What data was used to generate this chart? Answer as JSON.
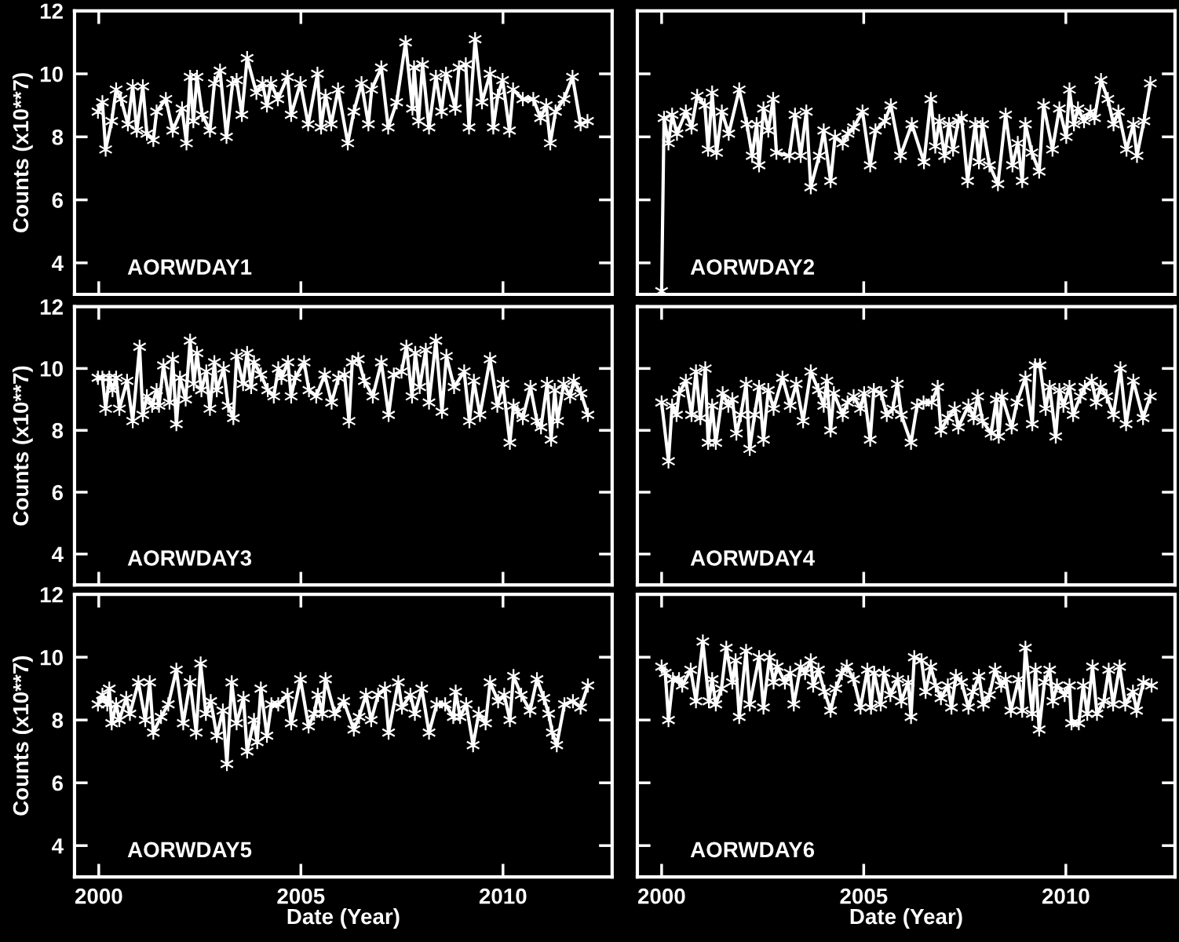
{
  "chart_data": [
    {
      "type": "line",
      "ylabel": "Counts (x10**7)",
      "annotations": [
        "AORWDAY1"
      ],
      "xlim": [
        1999.4,
        2012.7
      ],
      "ylim": [
        3,
        12
      ],
      "tick_labels": "y",
      "marker": "cross",
      "line_style": "solid",
      "xticks": [
        2000,
        2005,
        2010
      ],
      "yticks": [
        4,
        6,
        8,
        10,
        12
      ],
      "series": [
        {
          "color": "#ffffff",
          "x": [
            1999.98,
            2000.09,
            2000.17,
            2000.32,
            2000.43,
            2000.55,
            2000.72,
            2000.84,
            2000.94,
            2001.09,
            2001.19,
            2001.35,
            2001.43,
            2001.66,
            2001.83,
            2002.06,
            2002.17,
            2002.26,
            2002.34,
            2002.43,
            2002.56,
            2002.75,
            2002.86,
            2003.0,
            2003.16,
            2003.31,
            2003.41,
            2003.54,
            2003.67,
            2003.9,
            2004.05,
            2004.16,
            2004.26,
            2004.43,
            2004.67,
            2004.76,
            2004.99,
            2005.18,
            2005.41,
            2005.5,
            2005.61,
            2005.75,
            2005.92,
            2006.16,
            2006.31,
            2006.5,
            2006.67,
            2006.75,
            2006.99,
            2007.16,
            2007.37,
            2007.59,
            2007.76,
            2007.8,
            2007.91,
            2008.01,
            2008.17,
            2008.34,
            2008.48,
            2008.59,
            2008.82,
            2008.91,
            2009.08,
            2009.16,
            2009.31,
            2009.48,
            2009.68,
            2009.76,
            2009.87,
            2009.99,
            2010.16,
            2010.25,
            2010.49,
            2010.75,
            2010.93,
            2011.07,
            2011.17,
            2011.3,
            2011.51,
            2011.72,
            2011.92,
            2012.09
          ],
          "values": [
            8.8,
            9.1,
            7.6,
            8.5,
            9.5,
            9.2,
            8.4,
            9.6,
            8.2,
            9.6,
            8.1,
            7.9,
            8.8,
            9.2,
            8.2,
            8.9,
            7.8,
            9.9,
            8.5,
            9.9,
            8.7,
            8.2,
            9.7,
            10.1,
            8.0,
            9.7,
            9.8,
            8.7,
            10.5,
            9.4,
            9.7,
            9.0,
            9.7,
            9.2,
            9.9,
            8.7,
            9.7,
            8.4,
            10.0,
            8.3,
            9.3,
            8.4,
            9.5,
            7.8,
            8.8,
            9.7,
            8.4,
            9.5,
            10.2,
            8.3,
            9.1,
            11.0,
            8.9,
            10.2,
            8.5,
            10.3,
            8.3,
            9.9,
            8.8,
            10.0,
            8.9,
            10.2,
            10.3,
            8.3,
            11.1,
            9.1,
            10.0,
            8.3,
            9.3,
            9.8,
            8.2,
            9.5,
            9.2,
            9.2,
            8.6,
            9.0,
            7.8,
            8.8,
            9.2,
            9.9,
            8.4,
            8.5
          ]
        }
      ]
    },
    {
      "type": "line",
      "annotations": [
        "AORWDAY2"
      ],
      "xlim": [
        1999.4,
        2012.7
      ],
      "ylim": [
        3,
        12
      ],
      "tick_labels": false,
      "marker": "cross",
      "line_style": "solid",
      "xticks": [
        2000,
        2005,
        2010
      ],
      "yticks": [
        4,
        6,
        8,
        10,
        12
      ],
      "series": [
        {
          "color": "#ffffff",
          "x": [
            2000.0,
            2000.06,
            2000.17,
            2000.26,
            2000.38,
            2000.6,
            2000.74,
            2000.88,
            2001.07,
            2001.15,
            2001.25,
            2001.36,
            2001.49,
            2001.66,
            2001.92,
            2002.11,
            2002.24,
            2002.35,
            2002.41,
            2002.52,
            2002.64,
            2002.76,
            2002.84,
            2003.16,
            2003.3,
            2003.44,
            2003.58,
            2003.69,
            2003.9,
            2004.01,
            2004.18,
            2004.29,
            2004.48,
            2004.61,
            2004.75,
            2004.97,
            2005.16,
            2005.29,
            2005.52,
            2005.67,
            2005.91,
            2006.19,
            2006.49,
            2006.66,
            2006.77,
            2006.87,
            2007.0,
            2007.11,
            2007.21,
            2007.34,
            2007.42,
            2007.57,
            2007.76,
            2007.85,
            2007.94,
            2008.11,
            2008.32,
            2008.51,
            2008.68,
            2008.81,
            2008.92,
            2009.0,
            2009.16,
            2009.34,
            2009.45,
            2009.67,
            2009.84,
            2010.01,
            2010.09,
            2010.2,
            2010.3,
            2010.45,
            2010.61,
            2010.71,
            2010.87,
            2011.04,
            2011.18,
            2011.3,
            2011.5,
            2011.67,
            2011.76,
            2011.93,
            2012.09
          ],
          "values": [
            3.1,
            8.6,
            7.8,
            8.7,
            8.1,
            8.8,
            8.3,
            9.3,
            9.0,
            7.6,
            9.4,
            7.5,
            8.8,
            8.1,
            9.5,
            8.4,
            7.4,
            8.4,
            7.1,
            8.9,
            8.2,
            9.2,
            7.5,
            7.4,
            8.7,
            7.4,
            8.8,
            6.4,
            7.4,
            8.2,
            6.6,
            8.0,
            7.8,
            8.1,
            8.3,
            8.8,
            7.1,
            8.2,
            8.5,
            9.0,
            7.4,
            8.4,
            7.2,
            9.2,
            7.7,
            8.5,
            7.4,
            8.4,
            7.6,
            8.5,
            8.6,
            6.6,
            8.4,
            7.2,
            8.4,
            7.1,
            6.5,
            8.7,
            7.1,
            7.8,
            6.6,
            8.4,
            7.5,
            6.9,
            9.0,
            7.6,
            8.9,
            8.0,
            9.5,
            8.4,
            8.9,
            8.5,
            8.8,
            8.6,
            9.8,
            9.2,
            8.4,
            8.8,
            7.6,
            8.4,
            7.4,
            8.5,
            9.7
          ]
        }
      ]
    },
    {
      "type": "line",
      "ylabel": "Counts (x10**7)",
      "annotations": [
        "AORWDAY3"
      ],
      "xlim": [
        1999.4,
        2012.7
      ],
      "ylim": [
        3,
        12
      ],
      "tick_labels": "y",
      "marker": "cross",
      "line_style": "solid",
      "xticks": [
        2000,
        2005,
        2010
      ],
      "yticks": [
        4,
        6,
        8,
        10,
        12
      ],
      "series": [
        {
          "color": "#ffffff",
          "x": [
            1999.98,
            2000.09,
            2000.17,
            2000.26,
            2000.34,
            2000.43,
            2000.51,
            2000.7,
            2000.84,
            2001.01,
            2001.09,
            2001.19,
            2001.32,
            2001.43,
            2001.49,
            2001.6,
            2001.75,
            2001.83,
            2001.92,
            2002.01,
            2002.15,
            2002.26,
            2002.35,
            2002.43,
            2002.54,
            2002.66,
            2002.75,
            2002.86,
            2002.92,
            2003.09,
            2003.2,
            2003.33,
            2003.41,
            2003.57,
            2003.67,
            2003.77,
            2003.84,
            2004.01,
            2004.18,
            2004.33,
            2004.44,
            2004.52,
            2004.68,
            2004.76,
            2004.86,
            2005.08,
            2005.2,
            2005.38,
            2005.59,
            2005.76,
            2005.93,
            2006.08,
            2006.19,
            2006.27,
            2006.42,
            2006.57,
            2006.78,
            2006.99,
            2007.17,
            2007.3,
            2007.49,
            2007.61,
            2007.75,
            2007.83,
            2007.94,
            2008.09,
            2008.17,
            2008.34,
            2008.49,
            2008.6,
            2008.79,
            2009.04,
            2009.17,
            2009.28,
            2009.43,
            2009.68,
            2009.86,
            2010.0,
            2010.17,
            2010.26,
            2010.36,
            2010.49,
            2010.68,
            2010.84,
            2010.94,
            2011.09,
            2011.19,
            2011.28,
            2011.35,
            2011.5,
            2011.66,
            2011.75,
            2011.93,
            2012.1
          ],
          "values": [
            9.7,
            9.7,
            8.7,
            9.7,
            9.3,
            9.7,
            8.7,
            9.6,
            8.3,
            10.7,
            8.5,
            9.1,
            8.8,
            9.3,
            8.8,
            10.1,
            8.9,
            10.3,
            8.2,
            9.7,
            9.0,
            10.9,
            9.5,
            10.5,
            9.3,
            9.9,
            8.7,
            10.2,
            9.3,
            10.0,
            8.8,
            8.4,
            10.4,
            9.5,
            10.5,
            9.4,
            10.2,
            9.8,
            9.3,
            9.1,
            10.0,
            9.7,
            10.2,
            9.1,
            9.7,
            10.2,
            9.3,
            9.1,
            9.8,
            8.9,
            9.7,
            9.8,
            8.3,
            10.2,
            10.3,
            9.6,
            9.1,
            10.2,
            8.5,
            9.8,
            9.9,
            10.7,
            9.1,
            10.5,
            9.4,
            10.6,
            8.9,
            10.9,
            8.6,
            10.4,
            9.4,
            9.9,
            8.3,
            9.6,
            8.5,
            10.3,
            8.8,
            9.5,
            7.6,
            8.8,
            8.6,
            8.4,
            9.4,
            8.3,
            8.1,
            9.5,
            7.7,
            9.3,
            8.3,
            9.5,
            9.1,
            9.6,
            9.2,
            8.5
          ]
        }
      ]
    },
    {
      "type": "line",
      "annotations": [
        "AORWDAY4"
      ],
      "xlim": [
        1999.4,
        2012.7
      ],
      "ylim": [
        3,
        12
      ],
      "tick_labels": false,
      "marker": "cross",
      "line_style": "solid",
      "xticks": [
        2000,
        2005,
        2010
      ],
      "yticks": [
        4,
        6,
        8,
        10,
        12
      ],
      "series": [
        {
          "color": "#ffffff",
          "x": [
            2000.0,
            2000.17,
            2000.26,
            2000.37,
            2000.43,
            2000.6,
            2000.74,
            2000.85,
            2000.96,
            2001.08,
            2001.15,
            2001.25,
            2001.34,
            2001.51,
            2001.65,
            2001.75,
            2001.85,
            2001.96,
            2002.09,
            2002.18,
            2002.3,
            2002.41,
            2002.52,
            2002.64,
            2002.77,
            2002.99,
            2003.18,
            2003.33,
            2003.5,
            2003.69,
            2003.88,
            2004.01,
            2004.09,
            2004.18,
            2004.26,
            2004.48,
            2004.6,
            2004.75,
            2004.92,
            2005.01,
            2005.16,
            2005.25,
            2005.43,
            2005.57,
            2005.72,
            2005.83,
            2005.93,
            2006.17,
            2006.32,
            2006.48,
            2006.68,
            2006.83,
            2006.91,
            2007.08,
            2007.25,
            2007.34,
            2007.59,
            2007.72,
            2007.82,
            2007.94,
            2008.15,
            2008.28,
            2008.34,
            2008.42,
            2008.66,
            2008.79,
            2009.0,
            2009.17,
            2009.24,
            2009.36,
            2009.5,
            2009.6,
            2009.75,
            2009.84,
            2009.94,
            2010.09,
            2010.18,
            2010.36,
            2010.47,
            2010.64,
            2010.75,
            2010.86,
            2011.01,
            2011.18,
            2011.35,
            2011.49,
            2011.67,
            2011.91,
            2012.09
          ],
          "values": [
            8.9,
            7.0,
            8.8,
            8.5,
            9.2,
            9.6,
            8.5,
            9.9,
            8.4,
            10.0,
            7.6,
            8.8,
            7.6,
            9.2,
            8.8,
            9.0,
            7.9,
            8.5,
            9.5,
            7.4,
            8.5,
            9.4,
            7.7,
            9.3,
            8.7,
            9.7,
            8.8,
            9.5,
            8.3,
            9.9,
            9.3,
            8.8,
            9.6,
            8.0,
            9.2,
            8.5,
            8.9,
            9.1,
            8.7,
            9.2,
            7.7,
            9.3,
            9.2,
            8.5,
            8.7,
            9.5,
            8.5,
            7.6,
            8.8,
            8.9,
            8.9,
            9.4,
            8.0,
            8.4,
            8.7,
            8.1,
            8.8,
            8.4,
            9.1,
            8.3,
            7.9,
            9.0,
            7.8,
            9.1,
            8.1,
            8.9,
            9.7,
            8.2,
            10.1,
            10.1,
            8.7,
            9.4,
            7.8,
            9.3,
            8.8,
            9.4,
            8.5,
            9.1,
            9.4,
            9.6,
            8.9,
            9.4,
            9.1,
            8.5,
            10.0,
            8.2,
            9.6,
            8.4,
            9.1
          ]
        }
      ]
    },
    {
      "type": "line",
      "xlabel": "Date (Year)",
      "ylabel": "Counts (x10**7)",
      "annotations": [
        "AORWDAY5"
      ],
      "xlim": [
        1999.4,
        2012.7
      ],
      "ylim": [
        3,
        12
      ],
      "marker": "cross",
      "line_style": "solid",
      "xticks": [
        2000,
        2005,
        2010
      ],
      "yticks": [
        4,
        6,
        8,
        10,
        12
      ],
      "series": [
        {
          "color": "#ffffff",
          "x": [
            1999.98,
            2000.09,
            2000.21,
            2000.26,
            2000.32,
            2000.43,
            2000.51,
            2000.68,
            2000.77,
            2000.98,
            2001.15,
            2001.26,
            2001.35,
            2001.54,
            2001.72,
            2001.92,
            2002.09,
            2002.26,
            2002.41,
            2002.52,
            2002.65,
            2002.77,
            2002.92,
            2003.07,
            2003.17,
            2003.29,
            2003.41,
            2003.58,
            2003.67,
            2003.84,
            2003.92,
            2004.01,
            2004.16,
            2004.27,
            2004.44,
            2004.67,
            2004.76,
            2004.99,
            2005.19,
            2005.33,
            2005.42,
            2005.53,
            2005.61,
            2005.84,
            2006.06,
            2006.31,
            2006.44,
            2006.61,
            2006.74,
            2006.91,
            2007.08,
            2007.17,
            2007.41,
            2007.5,
            2007.71,
            2007.82,
            2007.99,
            2008.17,
            2008.36,
            2008.57,
            2008.77,
            2008.83,
            2008.94,
            2009.09,
            2009.26,
            2009.4,
            2009.57,
            2009.68,
            2009.88,
            2010.03,
            2010.17,
            2010.26,
            2010.45,
            2010.67,
            2010.84,
            2011.01,
            2011.13,
            2011.22,
            2011.33,
            2011.52,
            2011.73,
            2011.92,
            2012.1
          ],
          "values": [
            8.5,
            8.8,
            8.5,
            9.0,
            7.9,
            8.5,
            8.0,
            8.7,
            8.2,
            9.2,
            8.0,
            9.2,
            7.6,
            8.1,
            8.5,
            9.6,
            7.9,
            9.2,
            7.6,
            9.8,
            8.2,
            8.6,
            7.5,
            8.3,
            6.6,
            9.2,
            7.9,
            8.7,
            7.0,
            8.0,
            7.3,
            9.0,
            7.5,
            8.5,
            8.5,
            8.8,
            7.9,
            9.3,
            7.8,
            8.2,
            8.8,
            8.2,
            9.3,
            8.2,
            8.6,
            7.7,
            8.1,
            8.8,
            8.0,
            8.8,
            9.0,
            7.6,
            9.2,
            8.4,
            8.8,
            8.2,
            9.0,
            7.6,
            8.5,
            8.5,
            8.1,
            8.9,
            8.1,
            8.5,
            7.2,
            8.2,
            7.9,
            9.2,
            8.6,
            8.8,
            8.0,
            9.4,
            8.8,
            8.3,
            9.3,
            8.7,
            8.2,
            7.6,
            7.2,
            8.5,
            8.6,
            8.4,
            9.1
          ]
        }
      ]
    },
    {
      "type": "line",
      "xlabel": "Date (Year)",
      "annotations": [
        "AORWDAY6"
      ],
      "xlim": [
        1999.4,
        2012.7
      ],
      "ylim": [
        3,
        12
      ],
      "tick_labels": "x",
      "marker": "cross",
      "line_style": "solid",
      "xticks": [
        2000,
        2005,
        2010
      ],
      "yticks": [
        4,
        6,
        8,
        10,
        12
      ],
      "series": [
        {
          "color": "#ffffff",
          "x": [
            2000.0,
            2000.09,
            2000.17,
            2000.28,
            2000.43,
            2000.51,
            2000.72,
            2000.85,
            2001.02,
            2001.17,
            2001.25,
            2001.34,
            2001.48,
            2001.6,
            2001.75,
            2001.83,
            2001.92,
            2002.09,
            2002.18,
            2002.41,
            2002.52,
            2002.67,
            2002.77,
            2002.86,
            2003.05,
            2003.18,
            2003.27,
            2003.44,
            2003.55,
            2003.69,
            2003.75,
            2003.88,
            2004.03,
            2004.18,
            2004.31,
            2004.46,
            2004.58,
            2004.75,
            2004.92,
            2005.09,
            2005.18,
            2005.26,
            2005.42,
            2005.5,
            2005.66,
            2005.84,
            2005.93,
            2006.1,
            2006.17,
            2006.25,
            2006.43,
            2006.53,
            2006.66,
            2006.78,
            2006.91,
            2007.08,
            2007.17,
            2007.28,
            2007.42,
            2007.59,
            2007.7,
            2007.85,
            2007.96,
            2008.11,
            2008.25,
            2008.4,
            2008.51,
            2008.64,
            2008.83,
            2008.92,
            2009.0,
            2009.17,
            2009.25,
            2009.34,
            2009.47,
            2009.6,
            2009.68,
            2009.78,
            2009.97,
            2010.09,
            2010.14,
            2010.32,
            2010.43,
            2010.53,
            2010.66,
            2010.77,
            2010.94,
            2011.06,
            2011.17,
            2011.33,
            2011.47,
            2011.66,
            2011.75,
            2011.92,
            2012.12
          ],
          "values": [
            9.7,
            9.5,
            8.0,
            9.3,
            9.3,
            9.1,
            9.6,
            8.6,
            10.5,
            8.6,
            9.3,
            8.5,
            9.0,
            10.3,
            9.2,
            9.9,
            8.1,
            10.2,
            8.5,
            10.0,
            8.4,
            10.0,
            9.2,
            9.7,
            9.2,
            9.5,
            8.5,
            9.7,
            9.5,
            9.9,
            9.1,
            9.6,
            8.9,
            8.3,
            9.0,
            9.5,
            9.7,
            9.3,
            8.4,
            9.6,
            8.4,
            9.5,
            8.5,
            9.5,
            8.8,
            9.3,
            8.6,
            9.2,
            8.1,
            10.0,
            9.9,
            8.9,
            9.7,
            9.1,
            8.7,
            9.1,
            8.4,
            9.4,
            9.2,
            8.4,
            8.9,
            9.4,
            8.5,
            8.8,
            9.6,
            9.1,
            9.3,
            8.3,
            9.3,
            8.3,
            10.3,
            8.2,
            9.6,
            7.7,
            9.2,
            9.6,
            8.6,
            9.1,
            8.8,
            9.1,
            7.9,
            7.9,
            9.1,
            8.2,
            9.7,
            8.2,
            8.6,
            9.6,
            8.5,
            9.7,
            8.5,
            8.9,
            8.3,
            9.2,
            9.1
          ]
        }
      ]
    }
  ]
}
